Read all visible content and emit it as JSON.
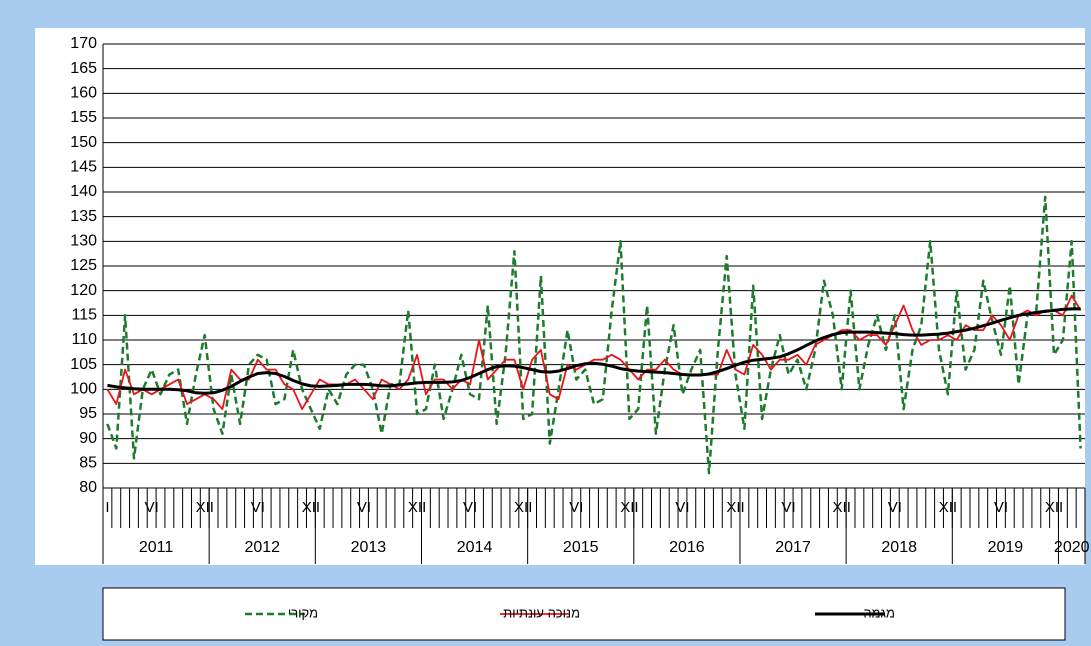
{
  "chart_data": {
    "type": "line",
    "categories": [
      "I",
      null,
      null,
      null,
      null,
      "VI",
      null,
      null,
      null,
      null,
      null,
      "XII",
      null,
      null,
      null,
      null,
      null,
      "VI",
      null,
      null,
      null,
      null,
      null,
      "XII",
      null,
      null,
      null,
      null,
      null,
      "VI",
      null,
      null,
      null,
      null,
      null,
      "XII",
      null,
      null,
      null,
      null,
      null,
      "VI",
      null,
      null,
      null,
      null,
      null,
      "XII",
      null,
      null,
      null,
      null,
      null,
      "VI",
      null,
      null,
      null,
      null,
      null,
      "XII",
      null,
      null,
      null,
      null,
      null,
      "VI",
      null,
      null,
      null,
      null,
      null,
      "XII",
      null,
      null,
      null,
      null,
      null,
      "VI",
      null,
      null,
      null,
      null,
      null,
      "XII",
      null,
      null,
      null,
      null,
      null,
      "VI",
      null,
      null,
      null,
      null,
      null,
      "XII",
      null,
      null,
      null,
      null,
      null,
      "VI",
      null,
      null,
      null,
      null,
      null,
      "XII",
      null,
      null,
      null
    ],
    "years": [
      "2011",
      "2012",
      "2013",
      "2014",
      "2015",
      "2016",
      "2017",
      "2018",
      "2019",
      "2020"
    ],
    "series": [
      {
        "name": "מקורי",
        "color": "#1e7b2e",
        "line_style": "dashed",
        "width": 2.5,
        "values": [
          93,
          88,
          115,
          86,
          100,
          104,
          99,
          103,
          104,
          93,
          103,
          111,
          96,
          91,
          103,
          93,
          105,
          107,
          106,
          97,
          98,
          108,
          100,
          96,
          92,
          100,
          97,
          103,
          105,
          105,
          100,
          91,
          101,
          101,
          116,
          95,
          96,
          105,
          94,
          100,
          107,
          99,
          98,
          117,
          93,
          107,
          128,
          94,
          95,
          123,
          89,
          100,
          112,
          102,
          104,
          97,
          98,
          116,
          130,
          94,
          96,
          117,
          91,
          104,
          113,
          99,
          104,
          108,
          83,
          108,
          127,
          103,
          92,
          121,
          94,
          104,
          111,
          103,
          106,
          100,
          108,
          122,
          115,
          100,
          120,
          100,
          109,
          115,
          108,
          115,
          96,
          108,
          113,
          130,
          108,
          99,
          120,
          104,
          108,
          122,
          114,
          107,
          121,
          101,
          115,
          116,
          139,
          107,
          110,
          130,
          88
        ]
      },
      {
        "name": "מנוכה עונתיות",
        "color": "#e8141b",
        "line_style": "solid",
        "width": 1.8,
        "values": [
          100,
          97,
          104,
          99,
          100,
          99,
          100,
          101,
          102,
          97,
          98,
          99,
          98,
          96,
          104,
          102,
          102,
          106,
          104,
          104,
          101,
          100,
          96,
          99,
          102,
          101,
          101,
          101,
          102,
          100,
          98,
          102,
          101,
          100,
          102,
          107,
          99,
          102,
          102,
          100,
          102,
          101,
          110,
          102,
          104,
          106,
          106,
          100,
          106,
          108,
          99,
          98,
          105,
          104,
          105,
          106,
          106,
          107,
          106,
          104,
          102,
          104,
          104,
          106,
          104,
          103,
          103,
          103,
          103,
          103,
          108,
          104,
          103,
          109,
          107,
          104,
          106,
          106,
          107,
          105,
          109,
          110,
          111,
          112,
          112,
          110,
          111,
          111,
          109,
          113,
          117,
          112,
          109,
          110,
          110,
          111,
          110,
          113,
          112,
          112,
          115,
          113,
          110,
          115,
          116,
          115,
          116,
          116,
          115,
          119,
          116
        ]
      },
      {
        "name": "מגמה",
        "color": "#000000",
        "line_style": "solid",
        "width": 3,
        "values": [
          100.8,
          100.5,
          100.3,
          100.1,
          100,
          100,
          100,
          100,
          99.9,
          99.7,
          99.3,
          99.2,
          99.3,
          99.8,
          100.6,
          101.6,
          102.5,
          103.2,
          103.4,
          103.2,
          102.6,
          101.8,
          101.1,
          100.7,
          100.6,
          100.7,
          100.8,
          101,
          101,
          101,
          100.9,
          100.7,
          100.7,
          100.9,
          101.1,
          101.3,
          101.4,
          101.4,
          101.4,
          101.5,
          101.8,
          102.4,
          103.2,
          104,
          104.6,
          104.8,
          104.7,
          104.4,
          104,
          103.6,
          103.5,
          103.7,
          104.2,
          104.8,
          105.2,
          105.3,
          105.1,
          104.7,
          104.2,
          103.9,
          103.7,
          103.6,
          103.5,
          103.4,
          103.2,
          103,
          102.9,
          102.9,
          103.1,
          103.6,
          104.2,
          104.9,
          105.5,
          105.9,
          106.1,
          106.3,
          106.6,
          107.2,
          108,
          108.9,
          109.8,
          110.5,
          111.1,
          111.5,
          111.6,
          111.6,
          111.6,
          111.5,
          111.4,
          111.3,
          111.1,
          111,
          111,
          111.1,
          111.2,
          111.4,
          111.7,
          112,
          112.4,
          112.9,
          113.4,
          114,
          114.5,
          115,
          115.3,
          115.6,
          115.8,
          116,
          116.2,
          116.3,
          116.3
        ]
      }
    ],
    "ylim": [
      80,
      170
    ],
    "yticks": [
      80,
      85,
      90,
      95,
      100,
      105,
      110,
      115,
      120,
      125,
      130,
      135,
      140,
      145,
      150,
      155,
      160,
      165,
      170
    ],
    "grid": true,
    "legend": "bottom"
  }
}
